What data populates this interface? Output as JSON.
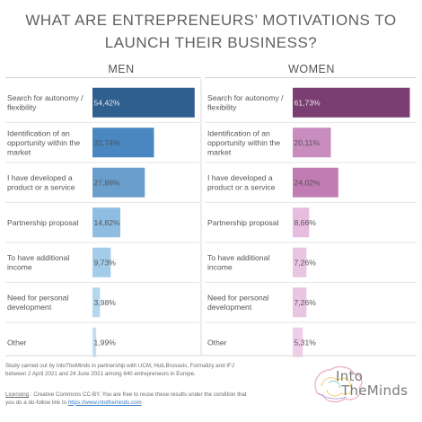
{
  "title_lines": [
    "WHAT ARE ENTREPRENEURS’ MOTIVATIONS TO",
    "LAUNCH THEIR BUSINESS?"
  ],
  "chart_data": [
    {
      "type": "bar",
      "orientation": "horizontal",
      "title": "MEN",
      "categories": [
        "Search for autonomy / flexibility",
        "Identification of an opportunity within the market",
        "I have developed a product or a service",
        "Partnership proposal",
        "To have additional income",
        "Need for personal development",
        "Other"
      ],
      "values": [
        54.42,
        32.74,
        27.88,
        14.82,
        9.73,
        3.98,
        1.99
      ],
      "value_labels": [
        "54,42%",
        "32,74%",
        "27,88%",
        "14,82%",
        "9,73%",
        "3,98%",
        "1,99%"
      ],
      "colors": [
        "#2f5f8f",
        "#4a86bf",
        "#6a9fcd",
        "#8fbde2",
        "#a4cce9",
        "#b4d6ee",
        "#c3def2"
      ],
      "xlim": [
        0,
        55
      ],
      "grid": false
    },
    {
      "type": "bar",
      "orientation": "horizontal",
      "title": "WOMEN",
      "categories": [
        "Search for autonomy / flexibility",
        "Identification of an opportunity within the market",
        "I have developed a product or a service",
        "Partnership proposal",
        "To have additional income",
        "Need for personal development",
        "Other"
      ],
      "values": [
        61.73,
        20.11,
        24.02,
        8.66,
        7.26,
        7.26,
        5.31
      ],
      "value_labels": [
        "61,73%",
        "20,11%",
        "24,02%",
        "8,66%",
        "7,26%",
        "7,26%",
        "5,31%"
      ],
      "colors": [
        "#7a3e72",
        "#c98cbf",
        "#c07cb3",
        "#e6bddf",
        "#e9c4e3",
        "#e9c4e3",
        "#edcde8"
      ],
      "xlim": [
        0,
        62
      ],
      "grid": false
    }
  ],
  "category_label_lines": [
    [
      "Search for autonomy /",
      "flexibility"
    ],
    [
      "Identification of an",
      "opportunity within the",
      "market"
    ],
    [
      "I have developed a",
      "product or a service"
    ],
    [
      "Partnership proposal"
    ],
    [
      "To have additional",
      "income"
    ],
    [
      "Need for personal",
      "development"
    ],
    [
      "Other"
    ]
  ],
  "footer": {
    "study_lines": [
      "Study carried out by IntoTheMinds in partnership with UCM, Hub.Brussels, Formalizy and IFJ",
      "between 2 April 2021 and 24 June 2021 among 840 entrepreneurs in Europe."
    ],
    "license_label": "Licensing",
    "license_text": " : Creative Commons CC-BY. You are free to reuse these results under the condition that",
    "license_text2": "you do a do-follow link to ",
    "license_link": "https://www.intotheminds.com"
  },
  "logo": {
    "line1": "Into",
    "line2": "TheMinds"
  }
}
